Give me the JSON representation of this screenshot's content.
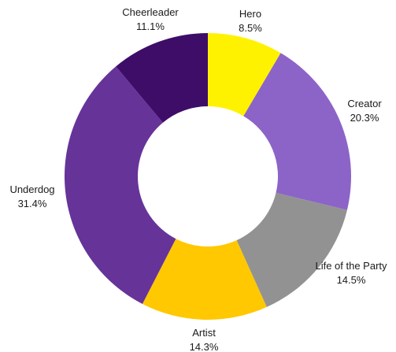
{
  "chart_data": {
    "type": "pie",
    "title": "",
    "donut": true,
    "start": "top",
    "direction": "clockwise",
    "slices": [
      {
        "label": "Hero",
        "value": 8.5,
        "display": "8.5%",
        "color": "#FFF200"
      },
      {
        "label": "Creator",
        "value": 20.3,
        "display": "20.3%",
        "color": "#8C64C8"
      },
      {
        "label": "Life of the Party",
        "value": 14.5,
        "display": "14.5%",
        "color": "#929292"
      },
      {
        "label": "Artist",
        "value": 14.3,
        "display": "14.3%",
        "color": "#FFC800"
      },
      {
        "label": "Underdog",
        "value": 31.4,
        "display": "31.4%",
        "color": "#663399"
      },
      {
        "label": "Cheerleader",
        "value": 11.1,
        "display": "11.1%",
        "color": "#3E0D68"
      }
    ]
  }
}
